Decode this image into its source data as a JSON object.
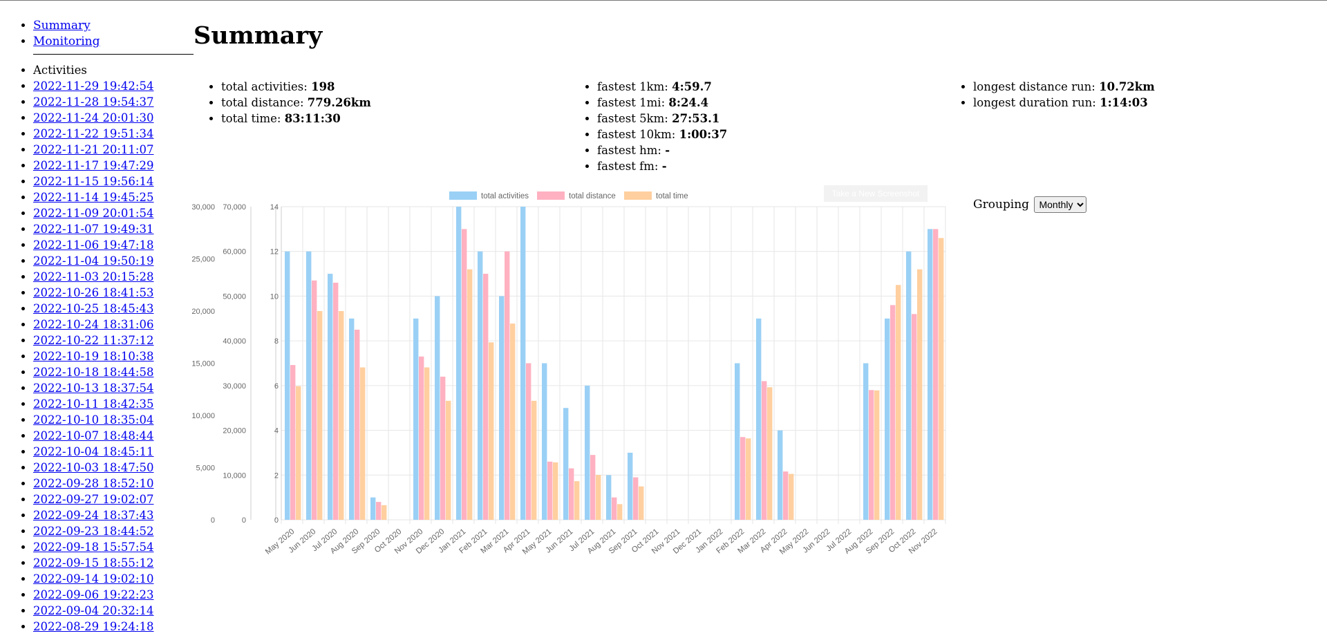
{
  "nav": [
    {
      "label": "Summary"
    },
    {
      "label": "Monitoring"
    }
  ],
  "activities_heading": "Activities",
  "activities": [
    "2022-11-29 19:42:54",
    "2022-11-28 19:54:37",
    "2022-11-24 20:01:30",
    "2022-11-22 19:51:34",
    "2022-11-21 20:11:07",
    "2022-11-17 19:47:29",
    "2022-11-15 19:56:14",
    "2022-11-14 19:45:25",
    "2022-11-09 20:01:54",
    "2022-11-07 19:49:31",
    "2022-11-06 19:47:18",
    "2022-11-04 19:50:19",
    "2022-11-03 20:15:28",
    "2022-10-26 18:41:53",
    "2022-10-25 18:45:43",
    "2022-10-24 18:31:06",
    "2022-10-22 11:37:12",
    "2022-10-19 18:10:38",
    "2022-10-18 18:44:58",
    "2022-10-13 18:37:54",
    "2022-10-11 18:42:35",
    "2022-10-10 18:35:04",
    "2022-10-07 18:48:44",
    "2022-10-04 18:45:11",
    "2022-10-03 18:47:50",
    "2022-09-28 18:52:10",
    "2022-09-27 19:02:07",
    "2022-09-24 18:37:43",
    "2022-09-23 18:44:52",
    "2022-09-18 15:57:54",
    "2022-09-15 18:55:12",
    "2022-09-14 19:02:10",
    "2022-09-06 19:22:23",
    "2022-09-04 20:32:14",
    "2022-08-29 19:24:18"
  ],
  "title": "Summary",
  "stats": {
    "col1": [
      {
        "label": "total activities: ",
        "value": "198"
      },
      {
        "label": "total distance: ",
        "value": "779.26km"
      },
      {
        "label": "total time: ",
        "value": "83:11:30"
      }
    ],
    "col2": [
      {
        "label": "fastest 1km: ",
        "value": "4:59.7"
      },
      {
        "label": "fastest 1mi: ",
        "value": "8:24.4"
      },
      {
        "label": "fastest 5km: ",
        "value": "27:53.1"
      },
      {
        "label": "fastest 10km: ",
        "value": "1:00:37"
      },
      {
        "label": "fastest hm: ",
        "value": "-"
      },
      {
        "label": "fastest fm: ",
        "value": "-"
      }
    ],
    "col3": [
      {
        "label": "longest distance run: ",
        "value": "10.72km"
      },
      {
        "label": "longest duration run: ",
        "value": "1:14:03"
      }
    ]
  },
  "screenshot_button": "Take a New Screenshot",
  "grouping": {
    "label": "Grouping",
    "selected": "Monthly"
  },
  "colors": {
    "activities": "#9ad0f5",
    "activities_border": "#36a2eb",
    "distance": "#ffb1c1",
    "distance_border": "#ff6384",
    "time": "#ffcf9f",
    "time_border": "#ff9f40"
  },
  "chart_data": {
    "type": "bar",
    "categories": [
      "May 2020",
      "Jun 2020",
      "Jul 2020",
      "Aug 2020",
      "Sep 2020",
      "Oct 2020",
      "Nov 2020",
      "Dec 2020",
      "Jan 2021",
      "Feb 2021",
      "Mar 2021",
      "Apr 2021",
      "May 2021",
      "Jun 2021",
      "Jul 2021",
      "Aug 2021",
      "Sep 2021",
      "Oct 2021",
      "Nov 2021",
      "Dec 2021",
      "Jan 2022",
      "Feb 2022",
      "Mar 2022",
      "Apr 2022",
      "May 2022",
      "Jun 2022",
      "Jul 2022",
      "Aug 2022",
      "Sep 2022",
      "Oct 2022",
      "Nov 2022"
    ],
    "series": [
      {
        "name": "total activities",
        "axis": "count",
        "values": [
          12,
          12,
          11,
          9,
          1,
          0,
          9,
          10,
          14,
          12,
          10,
          14,
          7,
          5,
          6,
          2,
          3,
          0,
          0,
          0,
          0,
          7,
          9,
          4,
          0,
          0,
          0,
          7,
          9,
          12,
          13
        ]
      },
      {
        "name": "total distance",
        "axis": "distance",
        "values": [
          34600,
          53500,
          53000,
          42500,
          4000,
          0,
          36500,
          32000,
          65000,
          55000,
          60000,
          35000,
          13000,
          11500,
          14500,
          5000,
          9500,
          0,
          0,
          0,
          0,
          18500,
          31000,
          10800,
          0,
          0,
          0,
          29000,
          48000,
          46000,
          65000
        ]
      },
      {
        "name": "total time",
        "axis": "time",
        "values": [
          12800,
          20000,
          20000,
          14600,
          1400,
          0,
          14600,
          11400,
          24000,
          17000,
          18800,
          11400,
          5500,
          3700,
          4300,
          1500,
          3200,
          0,
          0,
          0,
          0,
          7800,
          12700,
          4400,
          0,
          0,
          0,
          12400,
          22500,
          24000,
          27000
        ]
      }
    ],
    "axes": {
      "time": {
        "ticks": [
          "0",
          "5,000",
          "10,000",
          "15,000",
          "20,000",
          "25,000",
          "30,000"
        ],
        "ylim": [
          0,
          30000
        ]
      },
      "distance": {
        "ticks": [
          "0",
          "10,000",
          "20,000",
          "30,000",
          "40,000",
          "50,000",
          "60,000",
          "70,000"
        ],
        "ylim": [
          0,
          70000
        ]
      },
      "count": {
        "ticks": [
          "0",
          "2",
          "4",
          "6",
          "8",
          "10",
          "12",
          "14"
        ],
        "ylim": [
          0,
          14
        ]
      }
    },
    "legend_position": "top",
    "grid": true
  }
}
